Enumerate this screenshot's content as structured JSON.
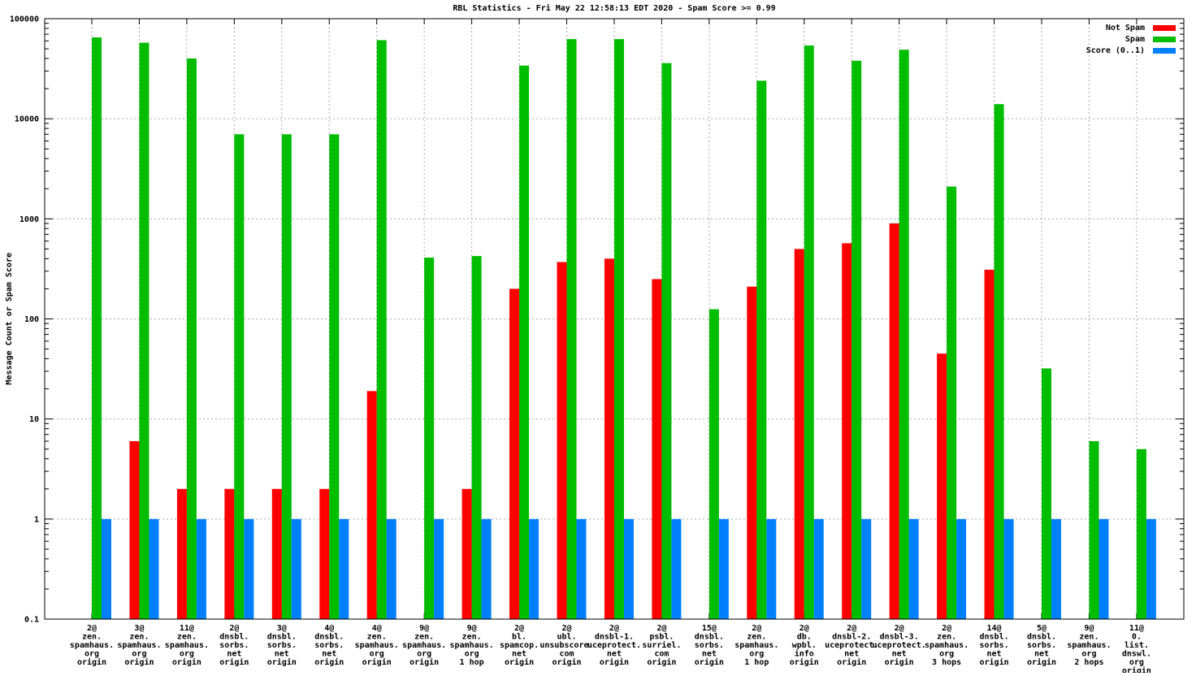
{
  "chart_data": {
    "type": "bar",
    "title": "RBL Statistics - Fri May 22 12:58:13 EDT 2020 - Spam Score >= 0.99",
    "ylabel": "Message Count or Spam Score",
    "yscale": "log",
    "ylim": [
      0.1,
      100000
    ],
    "ytick_labels": [
      "100000",
      "10000",
      "1000",
      "100",
      "10",
      "1",
      "0.1"
    ],
    "ytick_values": [
      100000,
      10000,
      1000,
      100,
      10,
      1,
      0.1
    ],
    "grid": true,
    "legend_position": "top-right-inside",
    "colors": {
      "not_spam": "#ff0000",
      "spam": "#00bd00",
      "score": "#0080ff",
      "grid": "#a6a6a6",
      "border": "#000000"
    },
    "legend": [
      {
        "label": "Not Spam",
        "color": "#ff0000"
      },
      {
        "label": "Spam",
        "color": "#00bd00"
      },
      {
        "label": "Score (0..1)",
        "color": "#0080ff"
      }
    ],
    "categories": [
      [
        "2@",
        "zen.",
        "spamhaus.",
        "org",
        "origin"
      ],
      [
        "3@",
        "zen.",
        "spamhaus.",
        "org",
        "origin"
      ],
      [
        "11@",
        "zen.",
        "spamhaus.",
        "org",
        "origin"
      ],
      [
        "2@",
        "dnsbl.",
        "sorbs.",
        "net",
        "origin"
      ],
      [
        "3@",
        "dnsbl.",
        "sorbs.",
        "net",
        "origin"
      ],
      [
        "4@",
        "dnsbl.",
        "sorbs.",
        "net",
        "origin"
      ],
      [
        "4@",
        "zen.",
        "spamhaus.",
        "org",
        "origin"
      ],
      [
        "9@",
        "zen.",
        "spamhaus.",
        "org",
        "origin"
      ],
      [
        "9@",
        "zen.",
        "spamhaus.",
        "org",
        "1 hop"
      ],
      [
        "2@",
        "bl.",
        "spamcop.",
        "net",
        "origin"
      ],
      [
        "2@",
        "ubl.",
        "unsubscore.",
        "com",
        "origin"
      ],
      [
        "2@",
        "dnsbl-1.",
        "uceprotect.",
        "net",
        "origin"
      ],
      [
        "2@",
        "psbl.",
        "surriel.",
        "com",
        "origin"
      ],
      [
        "15@",
        "dnsbl.",
        "sorbs.",
        "net",
        "origin"
      ],
      [
        "2@",
        "zen.",
        "spamhaus.",
        "org",
        "1 hop"
      ],
      [
        "2@",
        "db.",
        "wpbl.",
        "info",
        "origin"
      ],
      [
        "2@",
        "dnsbl-2.",
        "uceprotect.",
        "net",
        "origin"
      ],
      [
        "2@",
        "dnsbl-3.",
        "uceprotect.",
        "net",
        "origin"
      ],
      [
        "2@",
        "zen.",
        "spamhaus.",
        "org",
        "3 hops"
      ],
      [
        "14@",
        "dnsbl.",
        "sorbs.",
        "net",
        "origin"
      ],
      [
        "5@",
        "dnsbl.",
        "sorbs.",
        "net",
        "origin"
      ],
      [
        "9@",
        "zen.",
        "spamhaus.",
        "org",
        "2 hops"
      ],
      [
        "11@",
        "0.",
        "list.",
        "dnswl.",
        "org",
        "origin"
      ]
    ],
    "series": [
      {
        "name": "Not Spam",
        "color": "#ff0000",
        "values": [
          null,
          6,
          2,
          2,
          2,
          2,
          19,
          null,
          2,
          200,
          370,
          400,
          250,
          null,
          210,
          500,
          570,
          900,
          45,
          310,
          null,
          null,
          null
        ]
      },
      {
        "name": "Spam",
        "color": "#00bd00",
        "values": [
          65000,
          57500,
          40000,
          7000,
          7000,
          7000,
          61000,
          410,
          425,
          34000,
          62500,
          62500,
          36000,
          125,
          24000,
          54000,
          38000,
          49000,
          2100,
          14000,
          32,
          6,
          5
        ]
      },
      {
        "name": "Score (0..1)",
        "color": "#0080ff",
        "values": [
          1,
          1,
          1,
          1,
          1,
          1,
          1,
          1,
          1,
          1,
          1,
          1,
          1,
          1,
          1,
          1,
          1,
          1,
          1,
          1,
          1,
          1,
          1
        ]
      }
    ]
  }
}
